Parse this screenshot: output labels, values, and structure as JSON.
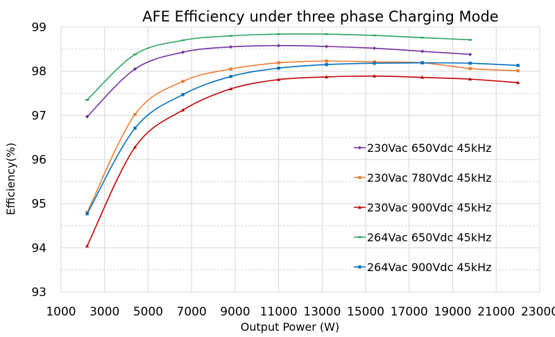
{
  "chart_data": {
    "type": "line",
    "title": "AFE Efficiency under three phase Charging Mode",
    "xlabel": "Output Power (W)",
    "ylabel": "Efficiency(%)",
    "xlim": [
      1000,
      23000
    ],
    "ylim": [
      93,
      99
    ],
    "x_ticks": [
      1000,
      3000,
      5000,
      7000,
      9000,
      11000,
      13000,
      15000,
      17000,
      19000,
      21000,
      23000
    ],
    "y_ticks": [
      93,
      94,
      95,
      96,
      97,
      98,
      99
    ],
    "grid": true,
    "legend_position": "right",
    "series": [
      {
        "name": "230Vac 650Vdc 45kHz",
        "color": "#7030a0",
        "marker": "diamond",
        "x": [
          2200,
          4400,
          6600,
          8800,
          11000,
          13200,
          15400,
          17600,
          19800
        ],
        "y": [
          96.97,
          98.05,
          98.43,
          98.55,
          98.58,
          98.56,
          98.52,
          98.45,
          98.38
        ]
      },
      {
        "name": "230Vac 780Vdc 45kHz",
        "color": "#ed7d31",
        "marker": "square",
        "x": [
          2200,
          4400,
          6600,
          8800,
          11000,
          13200,
          15400,
          17600,
          19800,
          22000
        ],
        "y": [
          94.8,
          97.02,
          97.77,
          98.05,
          98.19,
          98.23,
          98.21,
          98.19,
          98.06,
          98.01
        ]
      },
      {
        "name": "230Vac 900Vdc 45kHz",
        "color": "#c00000",
        "marker": "triangle",
        "x": [
          2200,
          4400,
          6600,
          8800,
          11000,
          13200,
          15400,
          17600,
          19800,
          22000
        ],
        "y": [
          94.04,
          96.28,
          97.12,
          97.6,
          97.81,
          97.87,
          97.89,
          97.86,
          97.82,
          97.74
        ]
      },
      {
        "name": "264Vac 650Vdc 45kHz",
        "color": "#2ca25f",
        "marker": "dash",
        "x": [
          2200,
          4400,
          6600,
          8800,
          11000,
          13200,
          15400,
          17600,
          19800
        ],
        "y": [
          97.35,
          98.38,
          98.7,
          98.8,
          98.84,
          98.84,
          98.81,
          98.76,
          98.71
        ]
      },
      {
        "name": "264Vac 900Vdc 45kHz",
        "color": "#0070c0",
        "marker": "square",
        "x": [
          2200,
          4400,
          6600,
          8800,
          11000,
          13200,
          15400,
          17600,
          19800,
          22000
        ],
        "y": [
          94.77,
          96.71,
          97.47,
          97.88,
          98.07,
          98.15,
          98.18,
          98.19,
          98.18,
          98.13
        ]
      }
    ]
  }
}
